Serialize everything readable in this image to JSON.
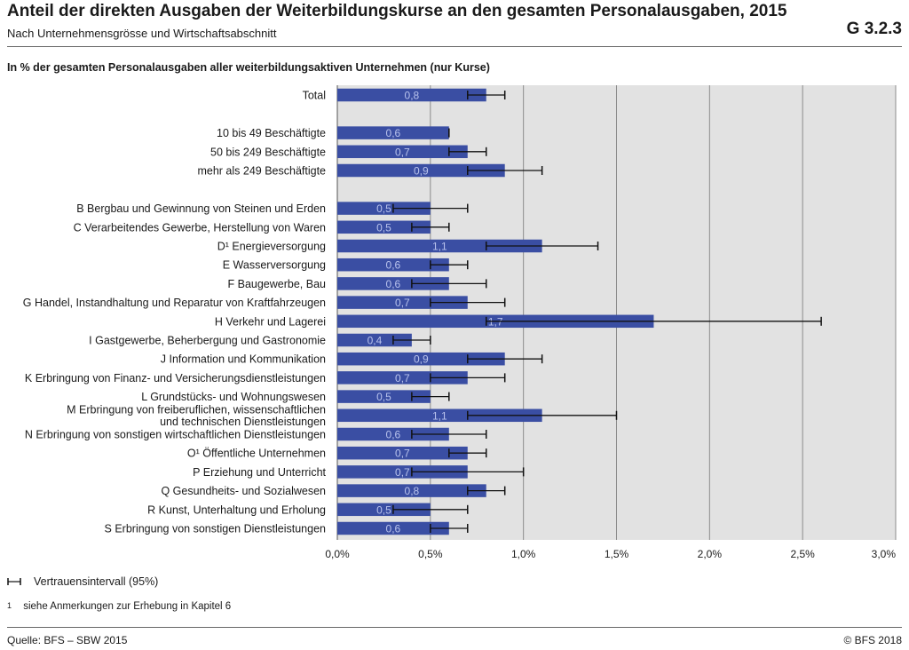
{
  "header": {
    "title": "Anteil der direkten Ausgaben der Weiterbildungskurse an den gesamten Personalausgaben, 2015",
    "subtitle": "Nach Unternehmensgrösse und Wirtschaftsabschnitt",
    "code": "G 3.2.3",
    "caption": "In % der gesamten Personalausgaben aller weiterbildungsaktiven Unternehmen (nur Kurse)"
  },
  "legend": {
    "ci_label": "Vertrauensintervall (95%)"
  },
  "footnote": {
    "mark": "1",
    "text": "siehe Anmerkungen zur Erhebung in Kapitel 6"
  },
  "footer": {
    "source": "Quelle: BFS – SBW 2015",
    "copyright": "© BFS 2018"
  },
  "colors": {
    "bar": "#3a4ea3",
    "plot_bg": "#e2e2e2",
    "grid": "#8c8c8c",
    "bar_label": "#b8c2ec"
  },
  "chart_data": {
    "type": "bar",
    "orientation": "horizontal",
    "xlim": [
      0,
      3.0
    ],
    "xticks": [
      0,
      0.5,
      1.0,
      1.5,
      2.0,
      2.5,
      3.0
    ],
    "xtick_labels": [
      "0,0%",
      "0,5%",
      "1,0%",
      "1,5%",
      "2,0%",
      "2,5%",
      "3,0%"
    ],
    "grid": true,
    "categories": [
      {
        "label": "Total",
        "value": 0.8,
        "value_label": "0,8",
        "ci": [
          0.7,
          0.9
        ],
        "group": 0
      },
      {
        "label": "10 bis 49 Beschäftigte",
        "value": 0.6,
        "value_label": "0,6",
        "ci": [
          0.6,
          0.6
        ],
        "group": 1
      },
      {
        "label": "50 bis 249 Beschäftigte",
        "value": 0.7,
        "value_label": "0,7",
        "ci": [
          0.6,
          0.8
        ],
        "group": 1
      },
      {
        "label": "mehr als 249 Beschäftigte",
        "value": 0.9,
        "value_label": "0,9",
        "ci": [
          0.7,
          1.1
        ],
        "group": 1
      },
      {
        "label": "B Bergbau und Gewinnung von Steinen und Erden",
        "value": 0.5,
        "value_label": "0,5",
        "ci": [
          0.3,
          0.7
        ],
        "group": 2
      },
      {
        "label": "C Verarbeitendes Gewerbe, Herstellung von Waren",
        "value": 0.5,
        "value_label": "0,5",
        "ci": [
          0.4,
          0.6
        ],
        "group": 2
      },
      {
        "label": "D¹ Energieversorgung",
        "value": 1.1,
        "value_label": "1,1",
        "ci": [
          0.8,
          1.4
        ],
        "group": 2
      },
      {
        "label": "E Wasserversorgung",
        "value": 0.6,
        "value_label": "0,6",
        "ci": [
          0.5,
          0.7
        ],
        "group": 2
      },
      {
        "label": "F Baugewerbe, Bau",
        "value": 0.6,
        "value_label": "0,6",
        "ci": [
          0.4,
          0.8
        ],
        "group": 2
      },
      {
        "label": "G Handel, Instandhaltung und Reparatur von Kraftfahrzeugen",
        "value": 0.7,
        "value_label": "0,7",
        "ci": [
          0.5,
          0.9
        ],
        "group": 2
      },
      {
        "label": "H Verkehr und Lagerei",
        "value": 1.7,
        "value_label": "1,7",
        "ci": [
          0.8,
          2.6
        ],
        "group": 2
      },
      {
        "label": "I Gastgewerbe, Beherbergung und Gastronomie",
        "value": 0.4,
        "value_label": "0,4",
        "ci": [
          0.3,
          0.5
        ],
        "group": 2
      },
      {
        "label": "J Information und Kommunikation",
        "value": 0.9,
        "value_label": "0,9",
        "ci": [
          0.7,
          1.1
        ],
        "group": 2
      },
      {
        "label": "K Erbringung von Finanz- und Versicherungsdienstleistungen",
        "value": 0.7,
        "value_label": "0,7",
        "ci": [
          0.5,
          0.9
        ],
        "group": 2
      },
      {
        "label": "L Grundstücks- und Wohnungswesen",
        "value": 0.5,
        "value_label": "0,5",
        "ci": [
          0.4,
          0.6
        ],
        "group": 2
      },
      {
        "label": "M Erbringung von freiberuflichen, wissenschaftlichen\nund technischen Dienstleistungen",
        "value": 1.1,
        "value_label": "1,1",
        "ci": [
          0.7,
          1.5
        ],
        "group": 2
      },
      {
        "label": "N Erbringung von sonstigen wirtschaftlichen Dienstleistungen",
        "value": 0.6,
        "value_label": "0,6",
        "ci": [
          0.4,
          0.8
        ],
        "group": 2
      },
      {
        "label": "O¹ Öffentliche Unternehmen",
        "value": 0.7,
        "value_label": "0,7",
        "ci": [
          0.6,
          0.8
        ],
        "group": 2
      },
      {
        "label": "P Erziehung und Unterricht",
        "value": 0.7,
        "value_label": "0,7",
        "ci": [
          0.4,
          1.0
        ],
        "group": 2
      },
      {
        "label": "Q Gesundheits- und Sozialwesen",
        "value": 0.8,
        "value_label": "0,8",
        "ci": [
          0.7,
          0.9
        ],
        "group": 2
      },
      {
        "label": "R Kunst, Unterhaltung und Erholung",
        "value": 0.5,
        "value_label": "0,5",
        "ci": [
          0.3,
          0.7
        ],
        "group": 2
      },
      {
        "label": "S Erbringung von sonstigen Dienstleistungen",
        "value": 0.6,
        "value_label": "0,6",
        "ci": [
          0.5,
          0.7
        ],
        "group": 2
      }
    ]
  }
}
